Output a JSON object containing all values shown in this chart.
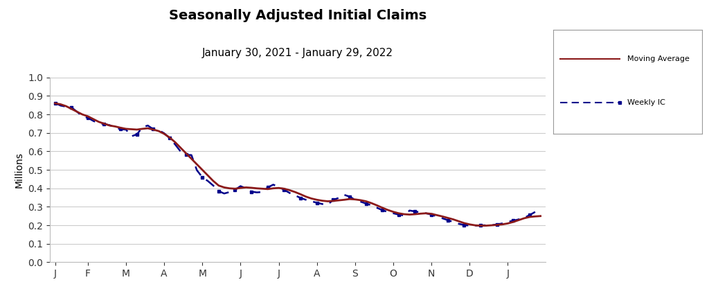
{
  "title": "Seasonally Adjusted Initial Claims",
  "subtitle": "January 30, 2021 - January 29, 2022",
  "ylabel": "Millions",
  "ylim": [
    0.0,
    1.0
  ],
  "yticks": [
    0.0,
    0.1,
    0.2,
    0.3,
    0.4,
    0.5,
    0.6,
    0.7,
    0.8,
    0.9,
    1.0
  ],
  "moving_avg_color": "#8B1A1A",
  "weekly_ic_color": "#00008B",
  "background_color": "#ffffff",
  "grid_color": "#cccccc",
  "legend_labels": [
    "Moving Average",
    "Weekly IC"
  ],
  "moving_avg": [
    0.86,
    0.855,
    0.845,
    0.83,
    0.815,
    0.8,
    0.79,
    0.775,
    0.76,
    0.75,
    0.74,
    0.735,
    0.728,
    0.722,
    0.72,
    0.718,
    0.722,
    0.725,
    0.718,
    0.71,
    0.695,
    0.675,
    0.65,
    0.62,
    0.59,
    0.56,
    0.53,
    0.5,
    0.47,
    0.44,
    0.415,
    0.405,
    0.4,
    0.398,
    0.402,
    0.405,
    0.403,
    0.4,
    0.398,
    0.396,
    0.4,
    0.402,
    0.398,
    0.39,
    0.38,
    0.368,
    0.355,
    0.345,
    0.338,
    0.333,
    0.33,
    0.332,
    0.335,
    0.338,
    0.342,
    0.34,
    0.336,
    0.33,
    0.32,
    0.308,
    0.295,
    0.283,
    0.273,
    0.265,
    0.26,
    0.258,
    0.26,
    0.263,
    0.265,
    0.262,
    0.255,
    0.248,
    0.24,
    0.232,
    0.222,
    0.212,
    0.205,
    0.2,
    0.198,
    0.198,
    0.2,
    0.202,
    0.205,
    0.21,
    0.218,
    0.228,
    0.238,
    0.245,
    0.248,
    0.25
  ],
  "weekly_ic": [
    0.862,
    0.848,
    0.842,
    0.838,
    0.815,
    0.79,
    0.782,
    0.765,
    0.752,
    0.748,
    0.742,
    0.73,
    0.72,
    0.718,
    0.682,
    0.692,
    0.73,
    0.74,
    0.72,
    0.715,
    0.698,
    0.672,
    0.638,
    0.6,
    0.582,
    0.58,
    0.498,
    0.46,
    0.44,
    0.415,
    0.385,
    0.372,
    0.38,
    0.392,
    0.412,
    0.4,
    0.382,
    0.378,
    0.38,
    0.405,
    0.42,
    0.408,
    0.392,
    0.375,
    0.362,
    0.348,
    0.338,
    0.33,
    0.322,
    0.315,
    0.312,
    0.338,
    0.348,
    0.365,
    0.355,
    0.338,
    0.328,
    0.318,
    0.308,
    0.295,
    0.282,
    0.272,
    0.265,
    0.258,
    0.253,
    0.28,
    0.275,
    0.27,
    0.265,
    0.258,
    0.248,
    0.238,
    0.228,
    0.218,
    0.208,
    0.202,
    0.198,
    0.198,
    0.2,
    0.2,
    0.2,
    0.205,
    0.21,
    0.218,
    0.225,
    0.232,
    0.24,
    0.255,
    0.272,
    0.29
  ],
  "n_points": 90,
  "month_labels": [
    "J",
    "F",
    "M",
    "A",
    "M",
    "J",
    "J",
    "A",
    "S",
    "O",
    "N",
    "D",
    "J"
  ],
  "title_fontsize": 14,
  "subtitle_fontsize": 11,
  "axis_fontsize": 10
}
